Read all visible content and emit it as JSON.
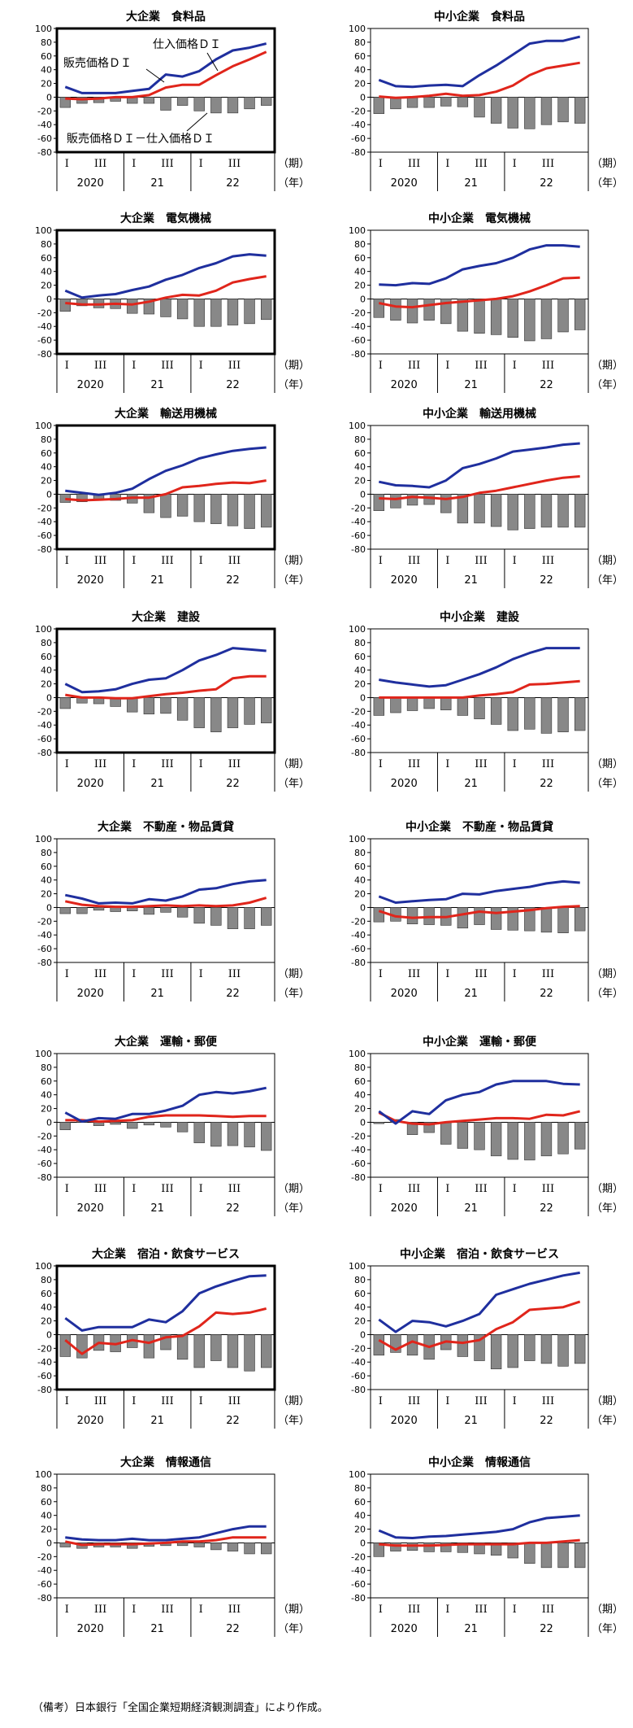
{
  "note": "（備考）日本銀行「全国企業短期経済観測調査」により作成。",
  "annotations": {
    "purchase": "仕入価格ＤＩ",
    "selling": "販売価格ＤＩ",
    "diff": "販売価格ＤＩ－仕入価格ＤＩ"
  },
  "axis": {
    "y_ticks": [
      100,
      80,
      60,
      40,
      20,
      0,
      -20,
      -40,
      -60,
      -80
    ],
    "ylim": [
      -80,
      100
    ],
    "quarter_labels": [
      "I",
      "III",
      "I",
      "III",
      "I",
      "III"
    ],
    "year_labels": [
      "2020",
      "21",
      "22"
    ],
    "period_unit": "（期）",
    "year_unit": "（年）"
  },
  "colors": {
    "purchase": "#1f2f9e",
    "selling": "#e0251b",
    "diff": "#888888",
    "frame": "#000000"
  },
  "chart_data": [
    {
      "type": "bar+line",
      "title": "大企業　食料品",
      "highlight": true,
      "purchase": [
        15,
        6,
        6,
        6,
        9,
        12,
        33,
        30,
        38,
        55,
        68,
        72,
        78
      ],
      "selling": [
        -2,
        -3,
        -2,
        0,
        0,
        3,
        14,
        18,
        18,
        32,
        45,
        55,
        66
      ],
      "diff": [
        -15,
        -9,
        -8,
        -6,
        -9,
        -9,
        -19,
        -12,
        -20,
        -23,
        -23,
        -17,
        -12
      ]
    },
    {
      "type": "bar+line",
      "title": "中小企業　食料品",
      "highlight": false,
      "purchase": [
        25,
        16,
        15,
        17,
        18,
        16,
        32,
        46,
        62,
        78,
        82,
        82,
        88
      ],
      "selling": [
        1,
        -1,
        0,
        2,
        5,
        2,
        3,
        8,
        17,
        32,
        42,
        46,
        50
      ],
      "diff": [
        -24,
        -17,
        -15,
        -15,
        -13,
        -14,
        -29,
        -38,
        -45,
        -46,
        -40,
        -36,
        -38
      ]
    },
    {
      "type": "bar+line",
      "title": "大企業　電気機械",
      "highlight": true,
      "purchase": [
        12,
        2,
        5,
        7,
        13,
        18,
        28,
        35,
        45,
        52,
        62,
        65,
        63
      ],
      "selling": [
        -6,
        -8,
        -8,
        -7,
        -8,
        -4,
        2,
        6,
        5,
        12,
        24,
        29,
        33
      ],
      "diff": [
        -18,
        -10,
        -13,
        -14,
        -21,
        -22,
        -26,
        -29,
        -40,
        -40,
        -38,
        -36,
        -30
      ]
    },
    {
      "type": "bar+line",
      "title": "中小企業　電気機械",
      "highlight": false,
      "purchase": [
        21,
        20,
        23,
        22,
        30,
        43,
        48,
        52,
        60,
        72,
        78,
        78,
        76
      ],
      "selling": [
        -6,
        -11,
        -12,
        -9,
        -6,
        -4,
        -2,
        0,
        4,
        11,
        20,
        30,
        31
      ],
      "diff": [
        -27,
        -31,
        -35,
        -31,
        -36,
        -47,
        -50,
        -52,
        -56,
        -61,
        -58,
        -48,
        -45
      ]
    },
    {
      "type": "bar+line",
      "title": "大企業　輸送用機械",
      "highlight": true,
      "purchase": [
        5,
        2,
        -1,
        2,
        8,
        22,
        34,
        42,
        52,
        58,
        63,
        66,
        68
      ],
      "selling": [
        -7,
        -9,
        -8,
        -7,
        -5,
        -5,
        0,
        10,
        12,
        15,
        17,
        16,
        20
      ],
      "diff": [
        -12,
        -11,
        -7,
        -9,
        -13,
        -27,
        -34,
        -32,
        -40,
        -43,
        -46,
        -50,
        -48
      ]
    },
    {
      "type": "bar+line",
      "title": "中小企業　輸送用機械",
      "highlight": false,
      "purchase": [
        18,
        13,
        12,
        10,
        20,
        38,
        44,
        52,
        62,
        65,
        68,
        72,
        74
      ],
      "selling": [
        -6,
        -7,
        -4,
        -5,
        -7,
        -4,
        2,
        5,
        10,
        15,
        20,
        24,
        26
      ],
      "diff": [
        -24,
        -20,
        -16,
        -15,
        -27,
        -42,
        -42,
        -47,
        -52,
        -50,
        -48,
        -48,
        -48
      ]
    },
    {
      "type": "bar+line",
      "title": "大企業　建設",
      "highlight": true,
      "purchase": [
        20,
        8,
        9,
        12,
        20,
        26,
        28,
        40,
        54,
        62,
        72,
        70,
        68
      ],
      "selling": [
        4,
        0,
        0,
        -1,
        -1,
        2,
        5,
        7,
        10,
        12,
        28,
        31,
        31
      ],
      "diff": [
        -16,
        -8,
        -9,
        -13,
        -21,
        -24,
        -23,
        -33,
        -44,
        -50,
        -44,
        -39,
        -37
      ]
    },
    {
      "type": "bar+line",
      "title": "中小企業　建設",
      "highlight": false,
      "purchase": [
        26,
        22,
        19,
        16,
        18,
        26,
        34,
        44,
        56,
        65,
        72,
        72,
        72
      ],
      "selling": [
        0,
        0,
        0,
        0,
        0,
        0,
        3,
        5,
        8,
        19,
        20,
        22,
        24
      ],
      "diff": [
        -26,
        -22,
        -19,
        -16,
        -18,
        -26,
        -31,
        -39,
        -48,
        -46,
        -52,
        -50,
        -48
      ]
    },
    {
      "type": "bar+line",
      "title": "大企業　不動産・物品賃貸",
      "highlight": false,
      "purchase": [
        18,
        13,
        6,
        7,
        6,
        12,
        10,
        16,
        26,
        28,
        34,
        38,
        40
      ],
      "selling": [
        9,
        4,
        2,
        1,
        1,
        2,
        3,
        2,
        3,
        2,
        3,
        7,
        14
      ],
      "diff": [
        -9,
        -9,
        -4,
        -6,
        -5,
        -10,
        -7,
        -14,
        -23,
        -26,
        -31,
        -31,
        -26
      ]
    },
    {
      "type": "bar+line",
      "title": "中小企業　不動産・物品賃貸",
      "highlight": false,
      "purchase": [
        16,
        7,
        9,
        11,
        12,
        20,
        19,
        24,
        27,
        30,
        35,
        38,
        36
      ],
      "selling": [
        -5,
        -13,
        -15,
        -14,
        -14,
        -10,
        -6,
        -8,
        -6,
        -4,
        -1,
        1,
        2
      ],
      "diff": [
        -21,
        -20,
        -24,
        -25,
        -26,
        -30,
        -25,
        -32,
        -33,
        -34,
        -36,
        -37,
        -34
      ]
    },
    {
      "type": "bar+line",
      "title": "大企業　運輸・郵便",
      "highlight": false,
      "purchase": [
        14,
        1,
        6,
        5,
        12,
        12,
        17,
        24,
        40,
        44,
        42,
        45,
        50
      ],
      "selling": [
        3,
        3,
        1,
        2,
        3,
        8,
        10,
        10,
        10,
        9,
        8,
        9,
        9
      ],
      "diff": [
        -11,
        2,
        -5,
        -3,
        -9,
        -4,
        -7,
        -14,
        -30,
        -35,
        -34,
        -36,
        -41
      ]
    },
    {
      "type": "bar+line",
      "title": "中小企業　運輸・郵便",
      "highlight": false,
      "purchase": [
        16,
        -2,
        16,
        12,
        32,
        40,
        44,
        55,
        60,
        60,
        60,
        56,
        55
      ],
      "selling": [
        14,
        2,
        -2,
        -3,
        0,
        2,
        4,
        6,
        6,
        5,
        11,
        10,
        16
      ],
      "diff": [
        -2,
        4,
        -18,
        -15,
        -32,
        -38,
        -40,
        -49,
        -54,
        -55,
        -49,
        -46,
        -39
      ]
    },
    {
      "type": "bar+line",
      "title": "大企業　宿泊・飲食サービス",
      "highlight": true,
      "purchase": [
        24,
        6,
        11,
        11,
        11,
        22,
        18,
        34,
        60,
        70,
        78,
        85,
        86
      ],
      "selling": [
        -8,
        -28,
        -12,
        -14,
        -8,
        -12,
        -4,
        -2,
        12,
        32,
        30,
        32,
        38
      ],
      "diff": [
        -32,
        -34,
        -23,
        -25,
        -19,
        -34,
        -22,
        -36,
        -48,
        -38,
        -48,
        -53,
        -48
      ]
    },
    {
      "type": "bar+line",
      "title": "中小企業　宿泊・飲食サービス",
      "highlight": false,
      "purchase": [
        22,
        4,
        20,
        18,
        12,
        20,
        30,
        58,
        66,
        74,
        80,
        86,
        90
      ],
      "selling": [
        -8,
        -22,
        -10,
        -18,
        -10,
        -12,
        -8,
        8,
        18,
        36,
        38,
        40,
        48
      ],
      "diff": [
        -30,
        -26,
        -30,
        -36,
        -22,
        -32,
        -38,
        -50,
        -48,
        -38,
        -42,
        -46,
        -42
      ]
    },
    {
      "type": "bar+line",
      "title": "大企業　情報通信",
      "highlight": false,
      "purchase": [
        8,
        5,
        4,
        4,
        6,
        4,
        4,
        6,
        8,
        14,
        20,
        24,
        24
      ],
      "selling": [
        2,
        -3,
        -2,
        -2,
        -2,
        -1,
        0,
        2,
        2,
        4,
        8,
        8,
        8
      ],
      "diff": [
        -6,
        -8,
        -6,
        -6,
        -8,
        -5,
        -4,
        -4,
        -6,
        -10,
        -12,
        -16,
        -16
      ]
    },
    {
      "type": "bar+line",
      "title": "中小企業　情報通信",
      "highlight": false,
      "purchase": [
        18,
        8,
        7,
        9,
        10,
        12,
        14,
        16,
        20,
        30,
        36,
        38,
        40
      ],
      "selling": [
        -2,
        -4,
        -4,
        -4,
        -3,
        -2,
        -2,
        -2,
        -2,
        0,
        0,
        2,
        4
      ],
      "diff": [
        -20,
        -12,
        -11,
        -13,
        -13,
        -14,
        -16,
        -18,
        -22,
        -30,
        -36,
        -36,
        -36
      ]
    }
  ]
}
